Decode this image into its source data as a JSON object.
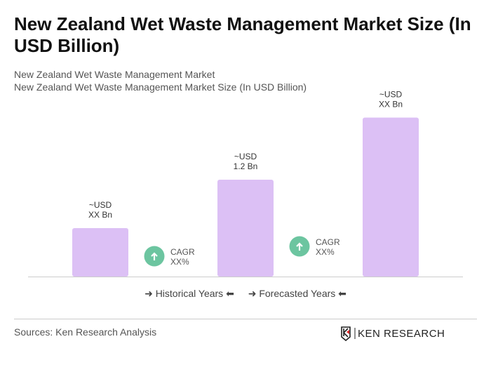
{
  "title": "New Zealand Wet Waste Management Market Size (In USD Billion)",
  "subtitle1": "New Zealand Wet Waste Management Market",
  "subtitle2": "New Zealand Wet Waste Management Market Size (In USD Billion)",
  "chart_data": {
    "type": "bar",
    "categories": [
      "",
      "",
      ""
    ],
    "values": [
      0.6,
      1.2,
      1.97
    ],
    "data_labels": [
      [
        "~USD",
        "XX Bn"
      ],
      [
        "~USD",
        "1.2 Bn"
      ],
      [
        "~USD",
        "XX Bn"
      ]
    ],
    "bar_color": "#dcc0f5",
    "ylim": [
      0,
      2.1
    ],
    "grid": false,
    "cagr": [
      {
        "label": "CAGR",
        "value": "XX%"
      },
      {
        "label": "CAGR",
        "value": "XX%"
      }
    ],
    "cagr_color": "#6cc5a0",
    "legend": [
      "Historical Years",
      "Forecasted Years"
    ],
    "legend_placement": "bottom"
  },
  "legend": {
    "historical": "Historical Years",
    "forecasted": "Forecasted Years"
  },
  "source": "Sources: Ken Research Analysis",
  "logo_text": "KEN RESEARCH"
}
